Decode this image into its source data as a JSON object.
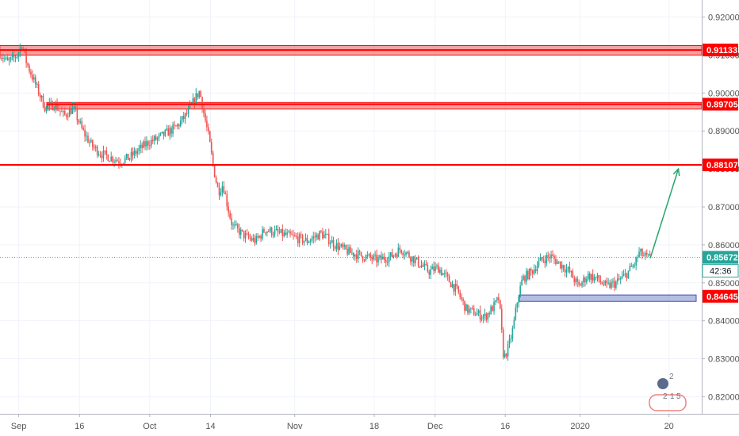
{
  "chart_data": {
    "type": "candlestick",
    "title": "",
    "xlabel": "",
    "ylabel": "",
    "ylim": [
      0.8155,
      0.9245
    ],
    "y_ticks": [
      "0.92000",
      "0.91000",
      "0.90000",
      "0.89000",
      "0.88000",
      "0.87000",
      "0.86000",
      "0.85000",
      "0.84000",
      "0.83000",
      "0.82000"
    ],
    "x_ticks": [
      {
        "label": "Sep",
        "day": 0
      },
      {
        "label": "16",
        "day": 13
      },
      {
        "label": "Oct",
        "day": 28
      },
      {
        "label": "14",
        "day": 41
      },
      {
        "label": "Nov",
        "day": 59
      },
      {
        "label": "18",
        "day": 76
      },
      {
        "label": "Dec",
        "day": 89
      },
      {
        "label": "16",
        "day": 104
      },
      {
        "label": "2020",
        "day": 120
      },
      {
        "label": "20",
        "day": 139
      }
    ],
    "x_range_days": [
      -4,
      146
    ],
    "price_path": [
      [
        -4,
        0.911
      ],
      [
        -2,
        0.908
      ],
      [
        0,
        0.91
      ],
      [
        1,
        0.913
      ],
      [
        2,
        0.908
      ],
      [
        4,
        0.902
      ],
      [
        6,
        0.896
      ],
      [
        8,
        0.897
      ],
      [
        10,
        0.894
      ],
      [
        12,
        0.896
      ],
      [
        14,
        0.89
      ],
      [
        16,
        0.886
      ],
      [
        18,
        0.884
      ],
      [
        20,
        0.883
      ],
      [
        22,
        0.882
      ],
      [
        24,
        0.883
      ],
      [
        26,
        0.885
      ],
      [
        28,
        0.887
      ],
      [
        30,
        0.888
      ],
      [
        32,
        0.8895
      ],
      [
        34,
        0.891
      ],
      [
        36,
        0.894
      ],
      [
        37,
        0.896
      ],
      [
        38,
        0.8985
      ],
      [
        39,
        0.9005
      ],
      [
        40,
        0.894
      ],
      [
        41,
        0.888
      ],
      [
        42,
        0.88
      ],
      [
        43,
        0.874
      ],
      [
        44,
        0.876
      ],
      [
        45,
        0.87
      ],
      [
        46,
        0.865
      ],
      [
        47,
        0.864
      ],
      [
        49,
        0.862
      ],
      [
        51,
        0.861
      ],
      [
        53,
        0.864
      ],
      [
        56,
        0.863
      ],
      [
        59,
        0.862
      ],
      [
        62,
        0.861
      ],
      [
        65,
        0.863
      ],
      [
        68,
        0.86
      ],
      [
        71,
        0.858
      ],
      [
        74,
        0.857
      ],
      [
        77,
        0.856
      ],
      [
        80,
        0.857
      ],
      [
        82,
        0.859
      ],
      [
        84,
        0.857
      ],
      [
        86,
        0.855
      ],
      [
        88,
        0.853
      ],
      [
        90,
        0.854
      ],
      [
        92,
        0.851
      ],
      [
        94,
        0.848
      ],
      [
        96,
        0.843
      ],
      [
        98,
        0.842
      ],
      [
        100,
        0.841
      ],
      [
        102,
        0.844
      ],
      [
        103,
        0.846
      ],
      [
        104,
        0.83
      ],
      [
        105,
        0.833
      ],
      [
        106,
        0.838
      ],
      [
        107,
        0.846
      ],
      [
        108,
        0.851
      ],
      [
        110,
        0.853
      ],
      [
        112,
        0.856
      ],
      [
        114,
        0.857
      ],
      [
        116,
        0.855
      ],
      [
        118,
        0.853
      ],
      [
        120,
        0.849
      ],
      [
        122,
        0.852
      ],
      [
        124,
        0.851
      ],
      [
        126,
        0.849
      ],
      [
        128,
        0.85
      ],
      [
        130,
        0.852
      ],
      [
        132,
        0.855
      ],
      [
        133,
        0.858
      ],
      [
        134,
        0.857
      ],
      [
        135,
        0.8565
      ]
    ],
    "colors": {
      "up": "#26a69a",
      "down": "#ef5350",
      "resistance": "#ff0000",
      "support": "#3f51b5",
      "arrow": "#26a66b",
      "current_price": "#26a69a"
    },
    "levels": [
      {
        "name": "resistance-1",
        "value": 0.91133,
        "label": "0.91133",
        "zone": [
          0.91,
          0.9125
        ],
        "start_day": -4
      },
      {
        "name": "resistance-2",
        "value": 0.89705,
        "label": "0.89705",
        "zone": [
          0.8958,
          0.8975
        ],
        "start_day": 6
      },
      {
        "name": "resistance-3",
        "value": 0.88107,
        "label": "0.88107",
        "zone": null,
        "start_day": -4
      },
      {
        "name": "support-1",
        "value": 0.84645,
        "label": "0.84645",
        "zone": [
          0.8451,
          0.8468
        ],
        "start_day": 107
      }
    ],
    "current_price": {
      "value": 0.85672,
      "label": "0.85672",
      "countdown": "42:36"
    },
    "forecast_arrow": {
      "from": [
        135,
        0.8565
      ],
      "to": [
        141,
        0.88
      ]
    }
  },
  "watermark": {
    "digits": [
      "2",
      "2",
      "1",
      "5"
    ]
  }
}
